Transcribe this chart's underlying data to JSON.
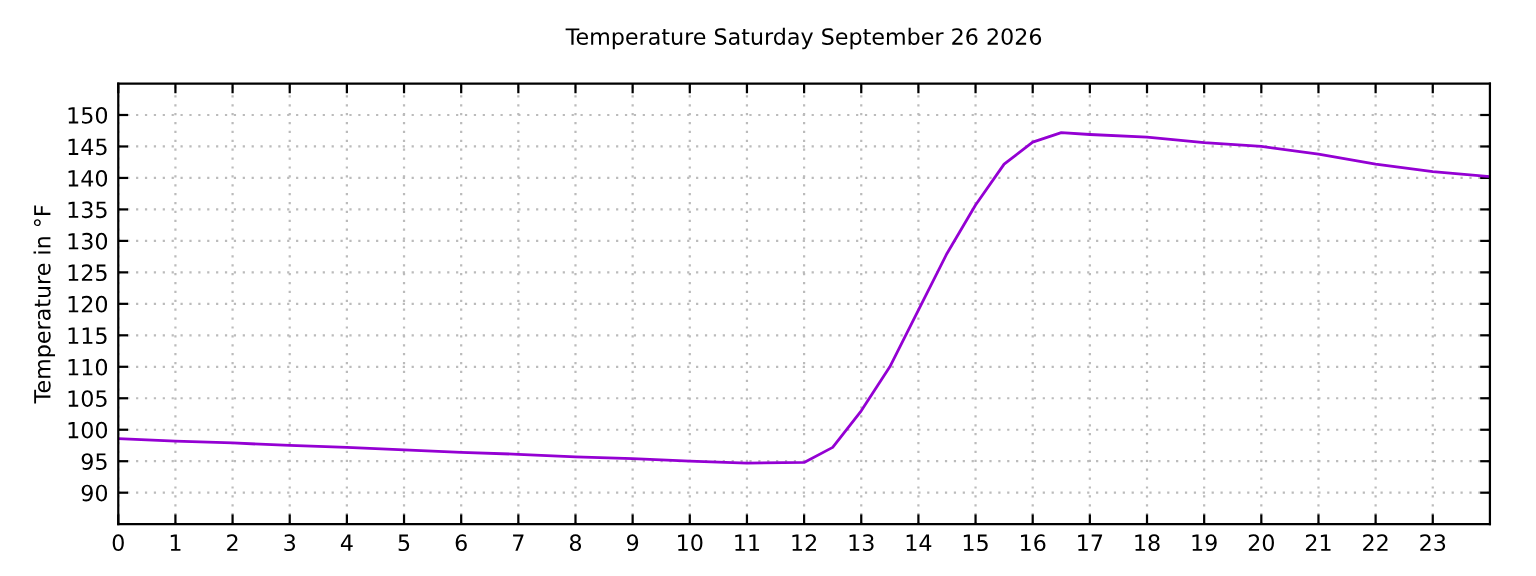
{
  "chart_data": {
    "type": "line",
    "title": "Temperature Saturday September 26 2026",
    "ylabel": "Temperature in °F",
    "x": [
      0,
      1,
      2,
      3,
      4,
      5,
      6,
      7,
      8,
      9,
      10,
      11,
      12,
      12.5,
      13,
      13.5,
      14,
      14.5,
      15,
      15.5,
      16,
      16.5,
      17,
      18,
      19,
      20,
      21,
      22,
      23,
      24
    ],
    "series": [
      {
        "color": "#9400d3",
        "values": [
          98.6,
          98.2,
          97.9,
          97.5,
          97.2,
          96.8,
          96.4,
          96.1,
          95.7,
          95.4,
          95.0,
          94.7,
          94.8,
          97.2,
          103,
          110,
          119,
          128,
          135.7,
          142.2,
          145.7,
          147.2,
          146.9,
          146.5,
          145.6,
          145,
          143.8,
          142.2,
          141,
          140.2
        ]
      }
    ],
    "xlim": [
      0,
      24
    ],
    "xticks": [
      0,
      1,
      2,
      3,
      4,
      5,
      6,
      7,
      8,
      9,
      10,
      11,
      12,
      13,
      14,
      15,
      16,
      17,
      18,
      19,
      20,
      21,
      22,
      23
    ],
    "ylim": [
      85,
      155
    ],
    "yticks": [
      90,
      95,
      100,
      105,
      110,
      115,
      120,
      125,
      130,
      135,
      140,
      145,
      150
    ],
    "grid": true,
    "legend": false
  }
}
